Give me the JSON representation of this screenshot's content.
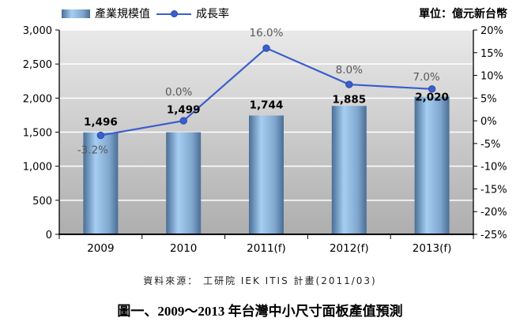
{
  "header": {
    "unit_label": "單位：億元新台幣"
  },
  "legend": [
    {
      "label": "產業規模值",
      "type": "bar"
    },
    {
      "label": "成長率",
      "type": "line"
    }
  ],
  "footer": {
    "source": "資料來源： 工研院 IEK ITIS 計畫(2011/03)",
    "caption": "圖一、2009～2013 年台灣中小尺寸面板產值預測"
  },
  "chart_data": {
    "type": "bar",
    "subtype": "bar-line-combo",
    "title": "圖一、2009～2013 年台灣中小尺寸面板產值預測",
    "categories": [
      "2009",
      "2010",
      "2011(f)",
      "2012(f)",
      "2013(f)"
    ],
    "series": [
      {
        "name": "產業規模值",
        "type": "bar",
        "axis": "left",
        "values": [
          1496,
          1499,
          1744,
          1885,
          2020
        ],
        "labels": [
          "1,496",
          "1,499",
          "1,744",
          "1,885",
          "2,020"
        ]
      },
      {
        "name": "成長率",
        "type": "line",
        "axis": "right",
        "values_pct": [
          -3.2,
          0.0,
          16.0,
          8.0,
          7.0
        ],
        "labels": [
          "-3.2%",
          "0.0%",
          "16.0%",
          "8.0%",
          "7.0%"
        ]
      }
    ],
    "left_axis": {
      "min": 0,
      "max": 3000,
      "step": 500,
      "ticks": [
        "0",
        "500",
        "1,000",
        "1,500",
        "2,000",
        "2,500",
        "3,000"
      ]
    },
    "right_axis": {
      "min": -25,
      "max": 20,
      "step": 5,
      "ticks": [
        "-25%",
        "-20%",
        "-15%",
        "-10%",
        "-5%",
        "0%",
        "5%",
        "10%",
        "15%",
        "20%"
      ]
    },
    "colors": {
      "bar_dark": "#4a6e96",
      "bar_light": "#a6cef2",
      "bar_mid": "#7fa6cd",
      "line": "#3a5ecc",
      "marker_stroke": "#2a49b0",
      "plot_top": "#e9e9e9",
      "plot_bottom": "#aeaeae",
      "grid": "#ffffff",
      "axis": "#000000",
      "growth_label": "#595959"
    },
    "layout": {
      "grid": true,
      "legend_position": "top-left",
      "unit_position": "top-right",
      "value_label_dy": [
        -9,
        -24,
        -9,
        -4,
        5
      ],
      "growth_label_dx": [
        -10,
        -6,
        0,
        0,
        -7
      ],
      "growth_label_dy": [
        23,
        -32,
        -15,
        -14,
        -11
      ]
    }
  }
}
